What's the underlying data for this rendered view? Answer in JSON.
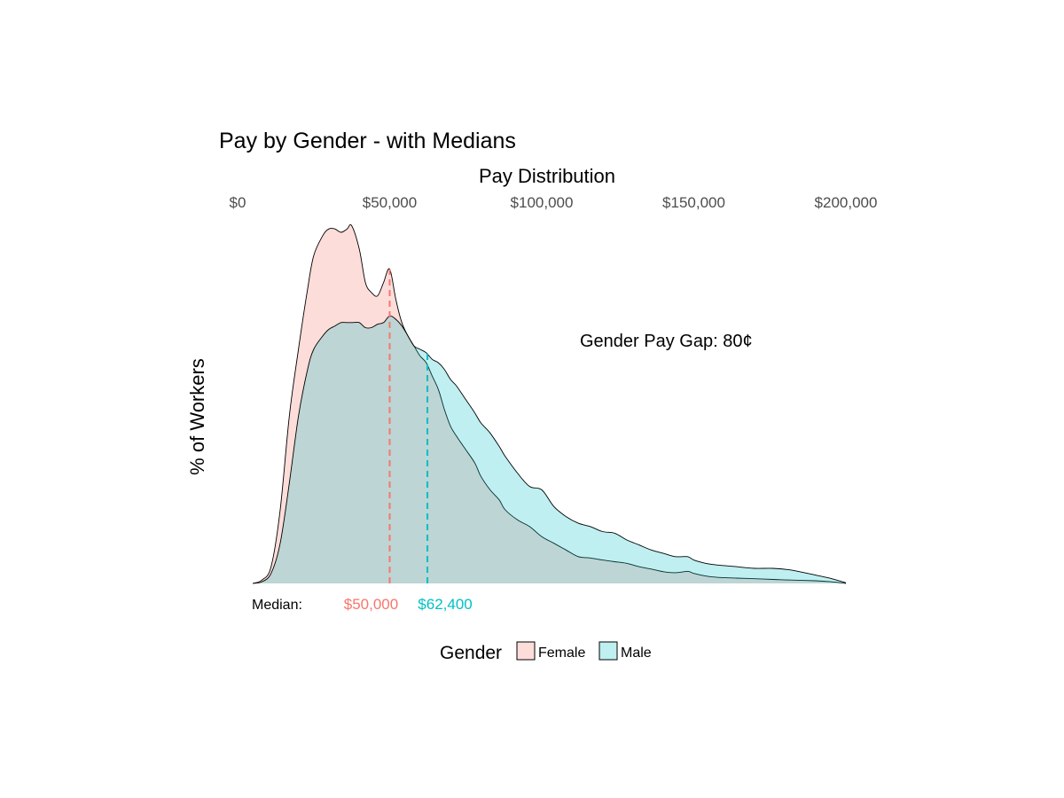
{
  "chart_data": {
    "type": "area",
    "title": "Pay by Gender - with Medians",
    "xlabel": "Pay Distribution",
    "ylabel": "% of Workers",
    "xlim": [
      0,
      200000
    ],
    "ylim": [
      0,
      1.05
    ],
    "x_ticks": [
      {
        "value": 0,
        "label": "$0"
      },
      {
        "value": 50000,
        "label": "$50,000"
      },
      {
        "value": 100000,
        "label": "$100,000"
      },
      {
        "value": 150000,
        "label": "$150,000"
      },
      {
        "value": 200000,
        "label": "$200,000"
      }
    ],
    "x_axis_position": "top",
    "grid": false,
    "legend": {
      "title": "Gender",
      "position": "bottom"
    },
    "annotation": "Gender Pay Gap: 80¢",
    "median_label": "Median:",
    "series": [
      {
        "name": "Female",
        "color": "#F8766D",
        "fill": "#F8766D",
        "fill_opacity": 0.25,
        "median": 50000,
        "median_label": "$50,000",
        "x": [
          5000,
          8000,
          11000,
          14000,
          17000,
          20000,
          23000,
          25000,
          28000,
          30000,
          32000,
          34000,
          36000,
          37500,
          40000,
          42000,
          44000,
          46000,
          48000,
          50000,
          52000,
          54000,
          56000,
          58000,
          60000,
          62000,
          64000,
          66000,
          68000,
          70000,
          72000,
          75000,
          78000,
          80000,
          83000,
          86000,
          88000,
          92000,
          96000,
          100000,
          104000,
          108000,
          112000,
          116000,
          120000,
          124000,
          128000,
          132000,
          136000,
          140000,
          144000,
          148000,
          150000,
          154000,
          158000,
          164000,
          170000,
          176000,
          182000,
          190000,
          195000,
          200000
        ],
        "y": [
          0.0,
          0.01,
          0.05,
          0.22,
          0.5,
          0.7,
          0.88,
          0.98,
          1.04,
          1.06,
          1.06,
          1.05,
          1.06,
          1.07,
          1.0,
          0.9,
          0.87,
          0.86,
          0.9,
          0.94,
          0.85,
          0.78,
          0.74,
          0.71,
          0.68,
          0.66,
          0.62,
          0.58,
          0.52,
          0.47,
          0.44,
          0.4,
          0.36,
          0.32,
          0.28,
          0.25,
          0.22,
          0.19,
          0.17,
          0.14,
          0.12,
          0.1,
          0.08,
          0.076,
          0.07,
          0.065,
          0.06,
          0.05,
          0.043,
          0.035,
          0.032,
          0.036,
          0.03,
          0.022,
          0.018,
          0.016,
          0.014,
          0.012,
          0.01,
          0.008,
          0.005,
          0.0
        ]
      },
      {
        "name": "Male",
        "color": "#00BFC4",
        "fill": "#00BFC4",
        "fill_opacity": 0.25,
        "median": 62400,
        "median_label": "$62,400",
        "x": [
          5000,
          8000,
          11000,
          14000,
          17000,
          20000,
          23000,
          25000,
          28000,
          30000,
          32000,
          34000,
          36000,
          38000,
          40000,
          42000,
          44000,
          46000,
          48000,
          50000,
          52000,
          54000,
          56000,
          58000,
          60000,
          62000,
          64000,
          66000,
          68000,
          70000,
          72000,
          75000,
          78000,
          80000,
          83000,
          86000,
          88000,
          92000,
          96000,
          100000,
          104000,
          108000,
          112000,
          116000,
          120000,
          124000,
          128000,
          132000,
          136000,
          140000,
          144000,
          148000,
          150000,
          154000,
          158000,
          164000,
          170000,
          176000,
          182000,
          190000,
          195000,
          200000
        ],
        "y": [
          0.0,
          0.005,
          0.03,
          0.12,
          0.3,
          0.5,
          0.64,
          0.7,
          0.74,
          0.76,
          0.77,
          0.78,
          0.78,
          0.78,
          0.78,
          0.765,
          0.765,
          0.775,
          0.78,
          0.8,
          0.79,
          0.77,
          0.74,
          0.71,
          0.7,
          0.69,
          0.67,
          0.66,
          0.64,
          0.61,
          0.59,
          0.55,
          0.51,
          0.48,
          0.45,
          0.41,
          0.38,
          0.33,
          0.29,
          0.28,
          0.23,
          0.2,
          0.18,
          0.17,
          0.155,
          0.15,
          0.13,
          0.115,
          0.1,
          0.09,
          0.08,
          0.08,
          0.07,
          0.06,
          0.055,
          0.05,
          0.045,
          0.045,
          0.04,
          0.025,
          0.015,
          0.002
        ]
      }
    ]
  }
}
